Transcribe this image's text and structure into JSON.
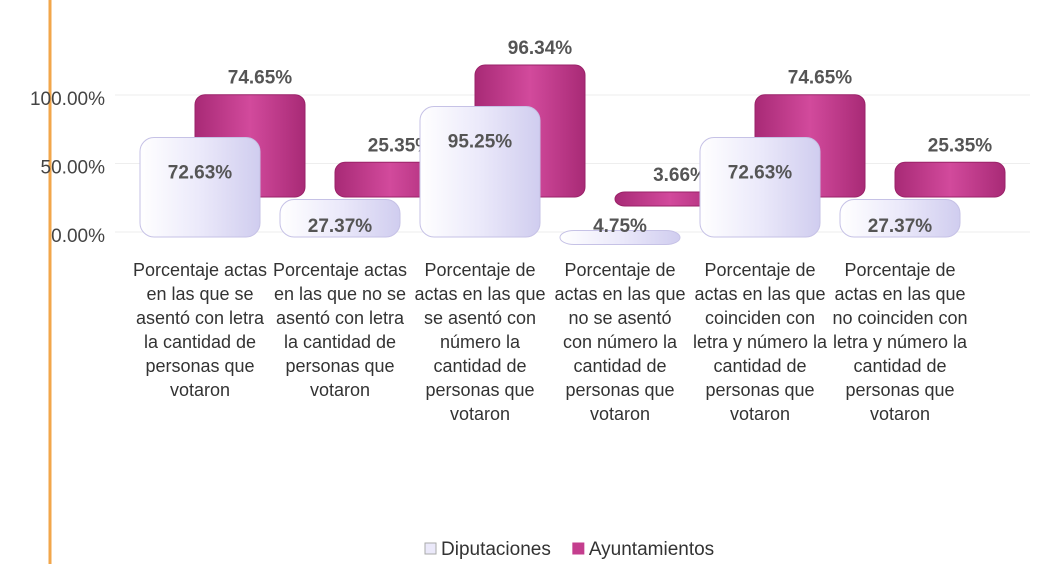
{
  "chart_data": {
    "type": "bar3d",
    "categories": [
      "Porcentaje actas en las que se asentó con letra la cantidad de personas que votaron",
      "Porcentaje actas en las que no se asentó con letra la cantidad de personas que votaron",
      "Porcentaje de actas en las que se asentó con número la cantidad de personas que votaron",
      "Porcentaje de actas en las que no se asentó con número la cantidad de personas que votaron",
      "Porcentaje de actas en las que coinciden con letra y número la cantidad de personas que votaron",
      "Porcentaje de actas en las que no coinciden con letra y número la cantidad de personas que votaron"
    ],
    "series": [
      {
        "name": "Diputaciones",
        "color": "#ebe9fa",
        "values": [
          72.63,
          27.37,
          95.25,
          4.75,
          72.63,
          27.37
        ],
        "value_labels": [
          "72.63%",
          "27.37%",
          "95.25%",
          "4.75%",
          "72.63%",
          "27.37%"
        ]
      },
      {
        "name": "Ayuntamientos",
        "color": "#c43e8e",
        "values": [
          74.65,
          25.35,
          96.34,
          3.66,
          74.65,
          25.35
        ],
        "value_labels": [
          "74.65%",
          "25.35%",
          "96.34%",
          "3.66%",
          "74.65%",
          "25.35%"
        ]
      }
    ],
    "ylim": [
      0,
      100
    ],
    "yticks": [
      {
        "value": 0,
        "label": "0.00%"
      },
      {
        "value": 50,
        "label": "50.00%"
      },
      {
        "value": 100,
        "label": "100.00%"
      }
    ],
    "legend": "bottom"
  }
}
